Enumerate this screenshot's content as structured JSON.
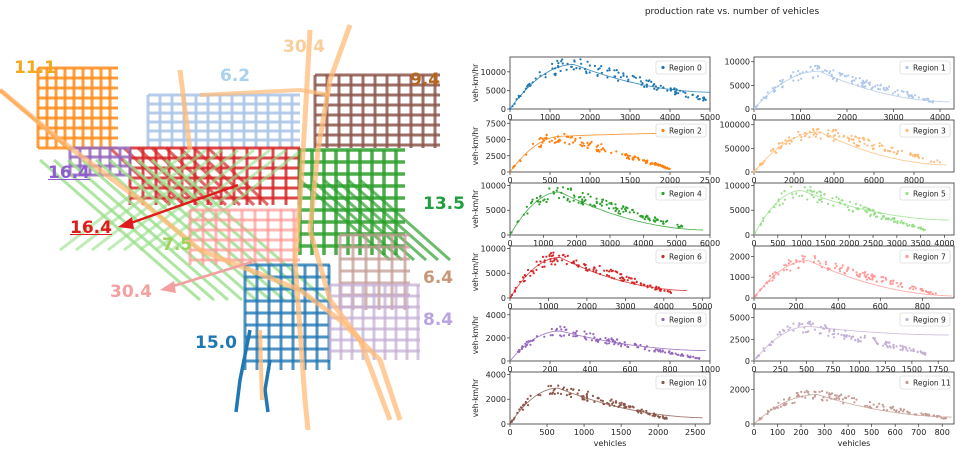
{
  "map": {
    "labels": [
      {
        "id": "r11",
        "text": "11.1",
        "color": "#f5a91a",
        "underline": false
      },
      {
        "id": "r1",
        "text": "6.2",
        "color": "#a9d2f0",
        "underline": false
      },
      {
        "id": "r3",
        "text": "30.4",
        "color": "#f8cf9a",
        "underline": false
      },
      {
        "id": "r10",
        "text": "9.4",
        "color": "#b5651d",
        "underline": false
      },
      {
        "id": "r8",
        "text": "16.4",
        "color": "#8f5bd0",
        "underline": true
      },
      {
        "id": "r2",
        "text": "16.4",
        "color": "#e01b1b",
        "underline": true
      },
      {
        "id": "r5",
        "text": "7.5",
        "color": "#9dd35b",
        "underline": false
      },
      {
        "id": "r4",
        "text": "13.5",
        "color": "#1e9e3e",
        "underline": false
      },
      {
        "id": "r7",
        "text": "30.4",
        "color": "#f3a0a0",
        "underline": false
      },
      {
        "id": "r6",
        "text": "6.4",
        "color": "#c99777",
        "underline": false
      },
      {
        "id": "r9",
        "text": "8.4",
        "color": "#b9a3e0",
        "underline": false
      },
      {
        "id": "r0",
        "text": "15.0",
        "color": "#1f77b4",
        "underline": false
      }
    ]
  },
  "chart_data": {
    "title": "production rate vs. number of vehicles",
    "type": "scatter",
    "xlabel": "vehicles",
    "ylabel": "veh-km/hr",
    "panels": [
      {
        "name": "Region 0",
        "color": "#1f77b4",
        "xlim": [
          0,
          5000
        ],
        "xticks": [
          0,
          1000,
          2000,
          3000,
          4000,
          5000
        ],
        "ylim": [
          0,
          14000
        ],
        "yticks": [
          0,
          5000,
          10000
        ],
        "peak": {
          "x": 1600,
          "y": 12000
        },
        "xmax": 4900,
        "end_y": 2500,
        "fit_end": 5000,
        "fit_end_y": 4500
      },
      {
        "name": "Region 1",
        "color": "#aec7e8",
        "xlim": [
          0,
          4300
        ],
        "xticks": [
          0,
          1000,
          2000,
          3000,
          4000
        ],
        "ylim": [
          0,
          11000
        ],
        "yticks": [
          0,
          5000,
          10000
        ],
        "peak": {
          "x": 1400,
          "y": 8000
        },
        "xmax": 3900,
        "end_y": 1500,
        "fit_end": 4200,
        "fit_end_y": 1500
      },
      {
        "name": "Region 2",
        "color": "#ff7f0e",
        "xlim": [
          0,
          2500
        ],
        "xticks": [
          0,
          500,
          1000,
          1500,
          2000,
          2500
        ],
        "ylim": [
          0,
          8000
        ],
        "yticks": [
          0,
          2500,
          5000,
          7500
        ],
        "peak": {
          "x": 650,
          "y": 5500
        },
        "xmax": 2000,
        "end_y": 500,
        "fit_end": 2450,
        "fit_end_y": 6000
      },
      {
        "name": "Region 3",
        "color": "#ffbb78",
        "xlim": [
          0,
          10000
        ],
        "xticks": [
          0,
          2000,
          4000,
          6000,
          8000
        ],
        "ylim": [
          0,
          110000
        ],
        "yticks": [
          0,
          50000,
          100000
        ],
        "peak": {
          "x": 3300,
          "y": 85000
        },
        "xmax": 9300,
        "end_y": 20000,
        "fit_end": 9600,
        "fit_end_y": 15000
      },
      {
        "name": "Region 4",
        "color": "#2ca02c",
        "xlim": [
          0,
          6000
        ],
        "xticks": [
          0,
          1000,
          2000,
          3000,
          4000,
          5000,
          6000
        ],
        "ylim": [
          0,
          10500
        ],
        "yticks": [
          0,
          5000,
          10000
        ],
        "peak": {
          "x": 1500,
          "y": 8700
        },
        "xmax": 5200,
        "end_y": 1500,
        "fit_end": 5800,
        "fit_end_y": 1000
      },
      {
        "name": "Region 5",
        "color": "#98df8a",
        "xlim": [
          0,
          4200
        ],
        "xticks": [
          0,
          500,
          1000,
          1500,
          2000,
          2500,
          3000,
          3500,
          4000
        ],
        "ylim": [
          0,
          10500
        ],
        "yticks": [
          0,
          5000,
          10000
        ],
        "peak": {
          "x": 1000,
          "y": 9000
        },
        "xmax": 3600,
        "end_y": 1000,
        "fit_end": 4100,
        "fit_end_y": 3000
      },
      {
        "name": "Region 6",
        "color": "#d62728",
        "xlim": [
          0,
          5200
        ],
        "xticks": [
          0,
          1000,
          2000,
          3000,
          4000,
          5000
        ],
        "ylim": [
          0,
          10500
        ],
        "yticks": [
          0,
          5000,
          10000
        ],
        "peak": {
          "x": 1300,
          "y": 8200
        },
        "xmax": 4200,
        "end_y": 1000,
        "fit_end": 4600,
        "fit_end_y": 1500
      },
      {
        "name": "Region 7",
        "color": "#ff9896",
        "xlim": [
          0,
          950
        ],
        "xticks": [
          0,
          200,
          400,
          600,
          800
        ],
        "ylim": [
          0,
          2500
        ],
        "yticks": [
          0,
          1000,
          2000
        ],
        "peak": {
          "x": 260,
          "y": 1800
        },
        "xmax": 880,
        "end_y": 150,
        "fit_end": 940,
        "fit_end_y": 100
      },
      {
        "name": "Region 8",
        "color": "#9467bd",
        "xlim": [
          0,
          1000
        ],
        "xticks": [
          0,
          200,
          400,
          600,
          800,
          1000
        ],
        "ylim": [
          0,
          4500
        ],
        "yticks": [
          0,
          2000,
          4000
        ],
        "peak": {
          "x": 250,
          "y": 2600
        },
        "xmax": 950,
        "end_y": 200,
        "fit_end": 980,
        "fit_end_y": 900
      },
      {
        "name": "Region 9",
        "color": "#c5b0d5",
        "xlim": [
          0,
          1900
        ],
        "xticks": [
          0,
          250,
          500,
          750,
          1000,
          1250,
          1500,
          1750
        ],
        "ylim": [
          0,
          6000
        ],
        "yticks": [
          0,
          2500,
          5000
        ],
        "peak": {
          "x": 520,
          "y": 4000
        },
        "xmax": 1650,
        "end_y": 800,
        "fit_end": 1850,
        "fit_end_y": 3000
      },
      {
        "name": "Region 10",
        "color": "#8c564b",
        "xlim": [
          0,
          2700
        ],
        "xticks": [
          0,
          500,
          1000,
          1500,
          2000,
          2500
        ],
        "ylim": [
          0,
          4200
        ],
        "yticks": [
          0,
          2000,
          4000
        ],
        "peak": {
          "x": 650,
          "y": 2900
        },
        "xmax": 2150,
        "end_y": 400,
        "fit_end": 2600,
        "fit_end_y": 500
      },
      {
        "name": "Region 11",
        "color": "#c49c94",
        "xlim": [
          0,
          850
        ],
        "xticks": [
          0,
          100,
          200,
          300,
          400,
          500,
          600,
          700,
          800
        ],
        "ylim": [
          0,
          3000
        ],
        "yticks": [
          0,
          2000
        ],
        "peak": {
          "x": 270,
          "y": 1700
        },
        "xmax": 820,
        "end_y": 300,
        "fit_end": 840,
        "fit_end_y": 400
      }
    ]
  }
}
